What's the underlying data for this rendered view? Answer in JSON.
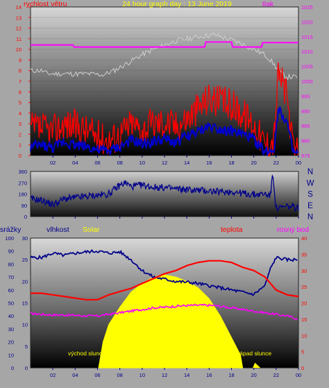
{
  "window": {
    "title": "24 hour graph day : 13 June 2019"
  },
  "colors": {
    "background": "#a6a6a6",
    "wind_speed": "#ff0000",
    "wind_gust": "#ff0000",
    "wind_avg": "#0000cc",
    "pressure": "#ff00ff",
    "direction": "#00008b",
    "humidity": "#00008b",
    "temperature": "#ff0000",
    "dewpoint": "#ff00ff",
    "solar": "#ffff00",
    "grey_line": "#cfcfcf"
  },
  "chart_data": [
    {
      "type": "line",
      "title": "24 hour graph day : 13 June 2019",
      "ylabel_left": "rychlost větru",
      "ylabel_right": "tlak",
      "ylim_left": [
        0,
        14
      ],
      "ylim_right": [
        975,
        1025
      ],
      "yticks_left": [
        "0",
        "1",
        "2",
        "3",
        "4",
        "5",
        "6",
        "7",
        "8",
        "9",
        "10",
        "11",
        "12",
        "13",
        "14"
      ],
      "yticks_right": [
        "975",
        "980",
        "985",
        "990",
        "995",
        "1000",
        "1005",
        "1010",
        "1015",
        "1020",
        "1025"
      ],
      "xticks": [
        "02",
        "04",
        "06",
        "08",
        "10",
        "12",
        "14",
        "16",
        "18",
        "20",
        "22",
        "00"
      ],
      "xlim": [
        0,
        24
      ],
      "series": [
        {
          "name": "tlak",
          "color": "#ff00ff",
          "x": [
            0,
            3.8,
            3.9,
            15.6,
            15.7,
            18.0,
            18.1,
            20.7,
            20.8,
            24
          ],
          "y": [
            1012.2,
            1012.2,
            1011.5,
            1011.5,
            1013.2,
            1013.2,
            1011.5,
            1011.5,
            1013.0,
            1013.0
          ]
        },
        {
          "x": [
            0,
            1,
            1.5,
            3,
            5,
            6.5,
            7.5,
            8.5,
            9.5,
            10,
            11,
            12,
            13,
            14,
            15,
            16,
            16.5,
            17,
            18,
            19,
            20,
            21,
            21.5,
            22,
            22.5,
            23,
            24
          ],
          "y": [
            8.0,
            8.0,
            7.7,
            7.7,
            7.7,
            7.6,
            8.0,
            8.6,
            9.2,
            9.5,
            10.0,
            10.4,
            10.8,
            11.0,
            11.2,
            11.3,
            11.4,
            11.2,
            10.9,
            10.5,
            10.0,
            9.5,
            9.0,
            8.3,
            7.7,
            7.4,
            7.4
          ]
        },
        {
          "x": [
            0,
            1,
            2,
            3,
            4,
            5,
            6,
            7,
            8,
            9,
            10,
            11,
            12,
            13,
            14,
            15,
            16,
            17,
            18,
            19,
            20,
            21,
            21.8,
            22.2,
            23,
            23.5,
            24
          ],
          "y": [
            2.5,
            2.5,
            2.3,
            3.0,
            2.8,
            2.4,
            1.8,
            1.5,
            2.0,
            3.0,
            2.5,
            3.0,
            3.2,
            2.8,
            3.5,
            4.5,
            5.5,
            5.0,
            4.8,
            4.0,
            3.0,
            1.0,
            1.5,
            8.0,
            5.5,
            0.5,
            0.2
          ]
        },
        {
          "x": [
            0,
            1,
            2,
            3,
            4,
            5,
            6,
            7,
            8,
            9,
            10,
            11,
            12,
            13,
            14,
            15,
            16,
            17,
            18,
            19,
            20,
            21,
            21.8,
            22.2,
            23,
            23.5,
            24
          ],
          "y": [
            0.8,
            1.0,
            0.7,
            1.3,
            1.0,
            0.9,
            0.5,
            0.4,
            0.8,
            1.4,
            1.1,
            1.3,
            1.5,
            1.2,
            1.8,
            2.2,
            2.8,
            2.5,
            2.3,
            2.0,
            1.5,
            0.3,
            0.6,
            4.5,
            3.0,
            0.3,
            0.1
          ]
        }
      ]
    },
    {
      "type": "line",
      "ylim": [
        0,
        360
      ],
      "yticks": [
        "0",
        "90",
        "180",
        "270",
        "360"
      ],
      "compass": [
        "N",
        "W",
        "S",
        "E",
        "N"
      ],
      "xticks": [
        "02",
        "04",
        "06",
        "08",
        "10",
        "12",
        "14",
        "16",
        "18",
        "20",
        "22",
        "00"
      ],
      "series": [
        {
          "color": "#00008b",
          "x": [
            0,
            1,
            2,
            3,
            4,
            5,
            6,
            7,
            8,
            8.5,
            9,
            10,
            11,
            12,
            13,
            14,
            15,
            16,
            17,
            18,
            19,
            20,
            21,
            21.5,
            21.7,
            22,
            23,
            24
          ],
          "y": [
            140,
            130,
            95,
            140,
            150,
            160,
            170,
            180,
            250,
            270,
            240,
            250,
            235,
            230,
            220,
            215,
            210,
            205,
            195,
            200,
            185,
            175,
            180,
            170,
            350,
            60,
            80,
            70
          ]
        }
      ]
    },
    {
      "type": "line",
      "ylabel_left_1": "srážky",
      "ylabel_left_2": "vlhkost",
      "legend_solar": "Solar",
      "ylabel_right_1": "teplota",
      "ylabel_right_2": "rosný bod",
      "ylim_rain": [
        0,
        100
      ],
      "ylim_humidity": [
        0,
        30
      ],
      "ylim_temp": [
        0,
        40
      ],
      "yticks_rain": [
        "0",
        "10",
        "20",
        "30",
        "40",
        "50",
        "60",
        "70",
        "80",
        "90",
        "100"
      ],
      "yticks_humidity": [
        "0",
        "5",
        "10",
        "15",
        "20",
        "25",
        "30"
      ],
      "yticks_temp": [
        "0",
        "5",
        "10",
        "15",
        "20",
        "25",
        "30",
        "35",
        "40"
      ],
      "xticks": [
        "02",
        "04",
        "06",
        "08",
        "10",
        "12",
        "14",
        "16",
        "18",
        "20",
        "22",
        "00"
      ],
      "annotations": [
        "východ slunce",
        "západ slunce"
      ],
      "series": [
        {
          "name": "vlhkost",
          "color": "#00008b",
          "x": [
            0,
            1,
            2,
            3,
            4,
            5,
            6,
            7,
            8,
            9,
            10,
            11,
            12,
            13,
            14,
            15,
            16,
            17,
            18,
            19,
            20,
            20.5,
            21,
            21.5,
            22,
            23,
            24
          ],
          "y": [
            25.5,
            25.5,
            26.5,
            26.0,
            26.5,
            26.8,
            27.0,
            26.5,
            26.8,
            25.0,
            22.5,
            21.0,
            20.5,
            20.0,
            19.8,
            19.5,
            19.0,
            18.5,
            18.0,
            17.5,
            17.0,
            18.0,
            19.0,
            23.0,
            25.5,
            25.0,
            25.0
          ]
        },
        {
          "name": "teplota",
          "color": "#ff0000",
          "x": [
            0,
            1,
            2,
            3,
            4,
            5,
            6,
            7,
            8,
            9,
            10,
            11,
            12,
            13,
            14,
            15,
            16,
            17,
            18,
            19,
            20,
            21,
            22,
            23,
            24
          ],
          "y": [
            23.0,
            23.0,
            22.5,
            22.0,
            21.5,
            21.0,
            21.0,
            22.5,
            23.5,
            24.5,
            26.0,
            27.5,
            29.0,
            30.0,
            31.5,
            32.5,
            33.0,
            33.0,
            32.5,
            31.0,
            30.0,
            28.0,
            24.0,
            22.5,
            22.0
          ]
        },
        {
          "name": "rosný bod",
          "color": "#ff00ff",
          "x": [
            0,
            1,
            2,
            3,
            4,
            5,
            6,
            7,
            8,
            9,
            10,
            11,
            12,
            13,
            14,
            15,
            16,
            17,
            18,
            19,
            20,
            21,
            22,
            23,
            24
          ],
          "y": [
            16.8,
            16.5,
            16.3,
            16.3,
            16.2,
            16.0,
            16.0,
            16.5,
            17.0,
            17.5,
            18.0,
            18.5,
            18.7,
            19.0,
            19.2,
            19.3,
            19.3,
            19.0,
            18.5,
            18.0,
            17.5,
            17.0,
            16.5,
            16.0,
            15.0
          ]
        },
        {
          "name": "Solar",
          "color": "#ffff00",
          "x": [
            6.1,
            6.5,
            7,
            8,
            9,
            10,
            11,
            12,
            13,
            14,
            15,
            16,
            17,
            18,
            18.8,
            19.0
          ],
          "y": [
            0,
            6,
            10,
            14,
            17.5,
            19.5,
            21.0,
            21.5,
            21.0,
            20.0,
            18.5,
            16.0,
            12.0,
            7.0,
            3.0,
            0
          ]
        }
      ]
    }
  ]
}
